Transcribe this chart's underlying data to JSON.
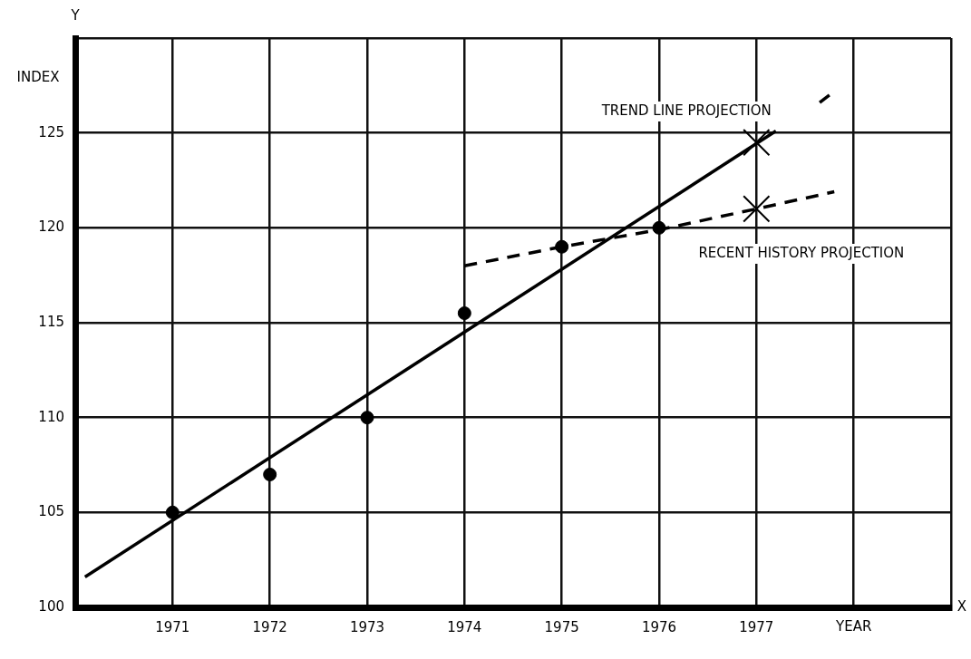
{
  "chart_data": {
    "type": "scatter",
    "ylabel": "INDEX",
    "xlabel": "YEAR",
    "xlim": [
      1970,
      1979
    ],
    "xticks": [
      {
        "value": 1970,
        "label": null
      },
      1971,
      1972,
      1973,
      1974,
      1975,
      1976,
      1977,
      {
        "value": 1978,
        "label": null
      },
      {
        "value": 1979,
        "label": null
      }
    ],
    "ylim": [
      100,
      130
    ],
    "yticks": [
      100,
      105,
      110,
      115,
      120,
      125,
      {
        "value": 130,
        "label": null
      }
    ],
    "grid": true,
    "legend": false,
    "series": [
      {
        "type": "scatter",
        "color": "#000000",
        "marker": "circle",
        "x": [
          1971,
          1972,
          1973,
          1974,
          1975,
          1976
        ],
        "values": [
          105,
          107,
          110,
          115.5,
          119,
          120
        ]
      },
      {
        "type": "line",
        "color": "#000000",
        "marker": "none",
        "line_style": "solid",
        "x": [
          1970.1,
          1977.2
        ],
        "values": [
          101.6,
          125.1
        ]
      },
      {
        "type": "line",
        "color": "#000000",
        "marker": "none",
        "line_style": "dashed",
        "x": [
          1977.65,
          1977.75
        ],
        "values": [
          126.6,
          127
        ]
      },
      {
        "type": "line",
        "color": "#000000",
        "marker": "none",
        "line_style": "dashed",
        "x": [
          1974,
          1975,
          1976,
          1977,
          1977.8
        ],
        "values": [
          118,
          119,
          119.9,
          121,
          121.9
        ]
      },
      {
        "type": "scatter",
        "color": "#000000",
        "marker": "cross",
        "x": [
          1977,
          1977
        ],
        "values": [
          124.5,
          121
        ]
      }
    ],
    "annotations": [
      "TREND LINE PROJECTION",
      "RECENT HISTORY PROJECTION",
      "Y",
      "X"
    ]
  }
}
